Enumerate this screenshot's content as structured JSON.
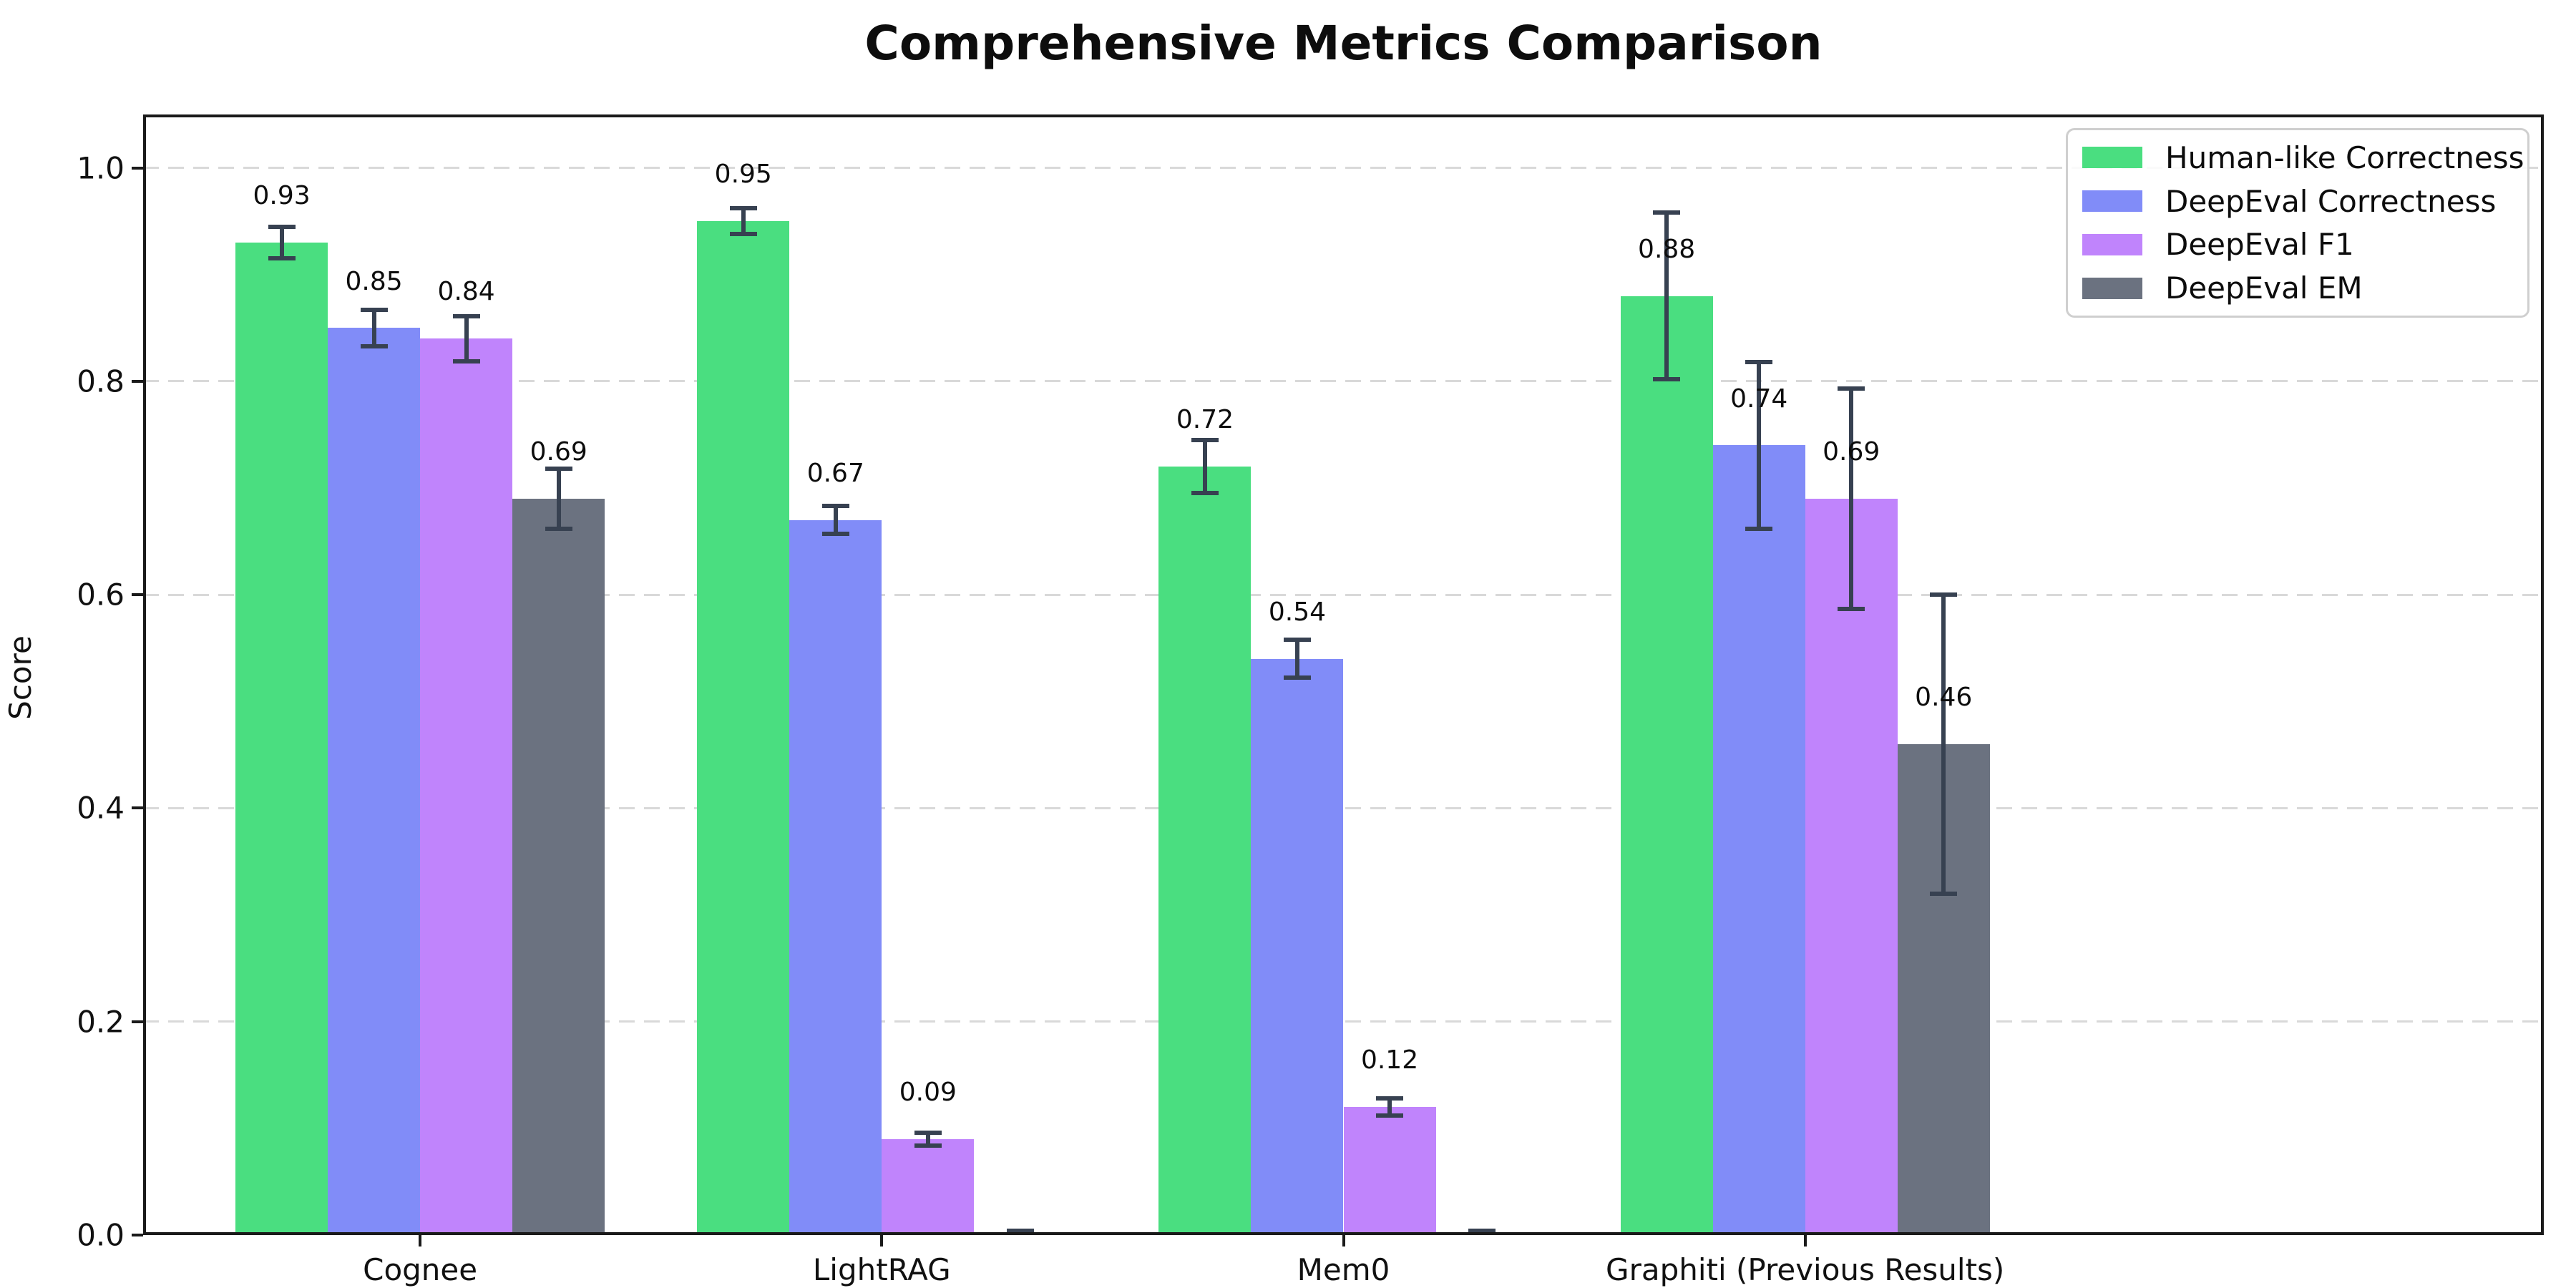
{
  "chart_data": {
    "type": "bar",
    "title": "Comprehensive Metrics Comparison",
    "ylabel": "Score",
    "xlabel": "",
    "categories": [
      "Cognee",
      "LightRAG",
      "Mem0",
      "Graphiti (Previous Results)"
    ],
    "series": [
      {
        "name": "Human-like Correctness",
        "color": "#4ade80",
        "values": [
          0.93,
          0.95,
          0.72,
          0.88
        ],
        "errors": [
          0.015,
          0.012,
          0.025,
          0.078
        ],
        "bar_labels": [
          "0.93",
          "0.95",
          "0.72",
          "0.88"
        ]
      },
      {
        "name": "DeepEval Correctness",
        "color": "#818cf8",
        "values": [
          0.85,
          0.67,
          0.54,
          0.74
        ],
        "errors": [
          0.017,
          0.013,
          0.018,
          0.078
        ],
        "bar_labels": [
          "0.85",
          "0.67",
          "0.54",
          "0.74"
        ]
      },
      {
        "name": "DeepEval F1",
        "color": "#c084fc",
        "values": [
          0.84,
          0.09,
          0.12,
          0.69
        ],
        "errors": [
          0.021,
          0.006,
          0.008,
          0.103
        ],
        "bar_labels": [
          "0.84",
          "0.09",
          "0.12",
          "0.69"
        ]
      },
      {
        "name": "DeepEval EM",
        "color": "#6b7280",
        "values": [
          0.69,
          0.0,
          0.0,
          0.46
        ],
        "errors": [
          0.028,
          0.004,
          0.004,
          0.14
        ],
        "bar_labels": [
          "0.69",
          null,
          null,
          "0.46"
        ]
      }
    ],
    "ylim": [
      0,
      1.05
    ],
    "yticks": [
      0.0,
      0.2,
      0.4,
      0.6,
      0.8,
      1.0
    ],
    "ytick_labels": [
      "0.0",
      "0.2",
      "0.4",
      "0.6",
      "0.8",
      "1.0"
    ],
    "grid": {
      "axis": "y",
      "style": "dashed",
      "color": "#d9d9d9"
    },
    "legend": {
      "position": "upper right"
    },
    "error_bar_color": "#374151",
    "spine_color": "#1a1a1a",
    "background_color": "#ffffff",
    "value_label_offset": 0.03
  }
}
